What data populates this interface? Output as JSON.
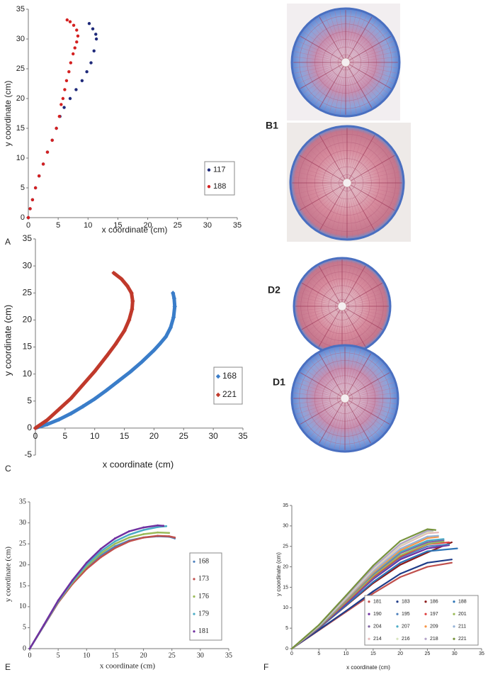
{
  "chart_data": [
    {
      "type": "scatter",
      "panel_label": "A",
      "x_label": "x coordinate (cm)",
      "y_label": "y coordinate (cm)",
      "marker": "circle",
      "mode": "markers",
      "xlim": [
        0,
        35
      ],
      "xticks": [
        0,
        5,
        10,
        15,
        20,
        25,
        30,
        35
      ],
      "ylim": [
        0,
        35
      ],
      "yticks": [
        0,
        5,
        10,
        15,
        20,
        25,
        30,
        35
      ],
      "series": [
        {
          "name": "117",
          "color": "#1f2a7a",
          "x": [
            0,
            0.3,
            0.7,
            1.2,
            1.8,
            2.5,
            3.2,
            4,
            4.7,
            5.3,
            6,
            7,
            8,
            9,
            9.8,
            10.5,
            11,
            11.4,
            11.3,
            10.8,
            10.2
          ],
          "values": [
            0,
            1.5,
            3,
            5,
            7,
            9,
            11,
            13,
            15,
            17,
            18.5,
            20,
            21.5,
            23,
            24.5,
            26,
            28,
            30,
            30.8,
            31.7,
            32.6
          ]
        },
        {
          "name": "188",
          "color": "#d42020",
          "x": [
            0,
            0.3,
            0.7,
            1.2,
            1.8,
            2.5,
            3.2,
            4,
            4.7,
            5.2,
            5.5,
            5.8,
            6.1,
            6.4,
            6.8,
            7.1,
            7.5,
            7.8,
            8.1,
            8.3,
            8.1,
            7.6,
            7,
            6.5
          ],
          "values": [
            0,
            1.5,
            3,
            5,
            7,
            9,
            11,
            13,
            15,
            17,
            19,
            20,
            21.5,
            23,
            24.5,
            26,
            27.5,
            28.5,
            29.5,
            30.5,
            31.5,
            32.3,
            32.9,
            33.2
          ]
        }
      ]
    },
    {
      "type": "scatter",
      "panel_label": "C",
      "x_label": "x coordinate  (cm)",
      "y_label": "y coordinate (cm)",
      "marker": "diamond",
      "mode": "markers+lines",
      "xlim": [
        0,
        35
      ],
      "xticks": [
        0,
        5,
        10,
        15,
        20,
        25,
        30,
        35
      ],
      "ylim": [
        -5,
        35
      ],
      "yticks": [
        -5,
        0,
        5,
        10,
        15,
        20,
        25,
        30,
        35
      ],
      "series": [
        {
          "name": "168",
          "color": "#3a7dc9",
          "x": [
            0,
            2,
            4,
            6,
            8,
            10,
            12,
            14,
            16,
            18,
            20,
            21,
            22,
            22.8,
            23.3,
            23.5,
            23.4,
            23.2
          ],
          "values": [
            0,
            0.7,
            1.6,
            2.7,
            4,
            5.4,
            7,
            8.7,
            10.4,
            12.3,
            14.4,
            15.6,
            16.9,
            18.6,
            20.5,
            22.5,
            24,
            25
          ]
        },
        {
          "name": "221",
          "color": "#c0392b",
          "x": [
            0,
            2,
            4,
            6,
            8,
            10,
            12,
            13.5,
            15,
            15.8,
            16.3,
            16.4,
            16.2,
            15.5,
            14.5,
            13.2
          ],
          "values": [
            0,
            1.5,
            3.5,
            5.5,
            8,
            10.5,
            13.3,
            15.5,
            18,
            20,
            22,
            23.5,
            25,
            26.3,
            27.6,
            28.7
          ]
        }
      ]
    },
    {
      "type": "scatter",
      "panel_label": "E",
      "x_label": "x coordinate (cm)",
      "y_label": "y coordinate (cm)",
      "marker": "circle",
      "mode": "markers+lines",
      "xlim": [
        0,
        35
      ],
      "xticks": [
        0,
        5,
        10,
        15,
        20,
        25,
        30,
        35
      ],
      "ylim": [
        0,
        35
      ],
      "yticks": [
        0,
        5,
        10,
        15,
        20,
        25,
        30,
        35
      ],
      "series": [
        {
          "name": "168",
          "color": "#4f81bd",
          "x": [
            0,
            2.5,
            5,
            7.5,
            10,
            12.5,
            15,
            17.5,
            20,
            22.5,
            24.5,
            25.5
          ],
          "values": [
            0,
            5.5,
            11,
            15.5,
            19.2,
            22.2,
            24.4,
            25.8,
            26.5,
            26.8,
            26.7,
            26.3
          ]
        },
        {
          "name": "173",
          "color": "#c0504d",
          "x": [
            0,
            2.5,
            5,
            7.5,
            10,
            12.5,
            15,
            17.5,
            20,
            22.5,
            24.5,
            25.5
          ],
          "values": [
            0,
            5.5,
            11,
            15.4,
            19,
            21.8,
            24,
            25.6,
            26.5,
            26.9,
            26.8,
            26.5
          ]
        },
        {
          "name": "176",
          "color": "#9bbb59",
          "x": [
            0,
            2.5,
            5,
            7.5,
            10,
            12.5,
            15,
            17.5,
            20,
            22.5,
            24.5
          ],
          "values": [
            0,
            5.6,
            11.2,
            15.8,
            19.6,
            22.7,
            25,
            26.5,
            27.3,
            27.7,
            27.6
          ]
        },
        {
          "name": "179",
          "color": "#4bacc6",
          "x": [
            0,
            2.5,
            5,
            7.5,
            10,
            12.5,
            15,
            17.5,
            20,
            22.5,
            24
          ],
          "values": [
            0,
            5.6,
            11.3,
            16,
            20,
            23.2,
            25.6,
            27.2,
            28.3,
            29,
            29.2
          ]
        },
        {
          "name": "181",
          "color": "#7030a0",
          "x": [
            0,
            2.5,
            5,
            7.5,
            10,
            12.5,
            15,
            17.5,
            20,
            22.5,
            23.5
          ],
          "values": [
            0,
            5.7,
            11.5,
            16.3,
            20.5,
            23.8,
            26.3,
            28,
            28.9,
            29.4,
            29.3
          ]
        }
      ]
    },
    {
      "type": "scatter",
      "panel_label": "F",
      "x_label": "x coordinate (cm)",
      "y_label": "y coordinate (cm)",
      "marker": "circle",
      "mode": "markers+lines",
      "xlim": [
        0,
        35
      ],
      "xticks": [
        0,
        5,
        10,
        15,
        20,
        25,
        30,
        35
      ],
      "ylim": [
        0,
        35
      ],
      "yticks": [
        0,
        5,
        10,
        15,
        20,
        25,
        30,
        35
      ],
      "series": [
        {
          "name": "181",
          "color": "#c0504d",
          "x": [
            0,
            5,
            10,
            15,
            20,
            25,
            29.5
          ],
          "values": [
            0,
            4.5,
            9,
            13.5,
            17.5,
            20,
            21
          ]
        },
        {
          "name": "183",
          "color": "#1f3c88",
          "x": [
            0,
            5,
            10,
            15,
            20,
            25,
            29.5
          ],
          "values": [
            0,
            4.6,
            9.2,
            14,
            18.3,
            21,
            21.8
          ]
        },
        {
          "name": "186",
          "color": "#8b1a1a",
          "x": [
            0,
            5,
            10,
            15,
            20,
            25,
            29.5
          ],
          "values": [
            0,
            5,
            10.5,
            16,
            20.5,
            23.5,
            26
          ]
        },
        {
          "name": "188",
          "color": "#2e75b6",
          "x": [
            0,
            5,
            10,
            15,
            20,
            25,
            30.5
          ],
          "values": [
            0,
            5,
            10.6,
            16.3,
            21,
            23.8,
            24.5
          ]
        },
        {
          "name": "190",
          "color": "#7030a0",
          "x": [
            0,
            5,
            10,
            15,
            20,
            25,
            29
          ],
          "values": [
            0,
            5.1,
            11,
            17,
            21.8,
            24.5,
            25.3
          ]
        },
        {
          "name": "195",
          "color": "#4f81bd",
          "x": [
            0,
            5,
            10,
            15,
            20,
            25,
            29
          ],
          "values": [
            0,
            5.2,
            11.2,
            17.3,
            22.2,
            25,
            25.5
          ]
        },
        {
          "name": "197",
          "color": "#e04040",
          "x": [
            0,
            5,
            10,
            15,
            20,
            25,
            29
          ],
          "values": [
            0,
            5.2,
            11.3,
            17.5,
            22.5,
            25.5,
            26
          ]
        },
        {
          "name": "201",
          "color": "#9bbb59",
          "x": [
            0,
            5,
            10,
            15,
            20,
            25,
            28
          ],
          "values": [
            0,
            5.3,
            11.5,
            17.8,
            22.8,
            25.6,
            26.2
          ]
        },
        {
          "name": "204",
          "color": "#8064a2",
          "x": [
            0,
            5,
            10,
            15,
            20,
            25,
            28
          ],
          "values": [
            0,
            5.4,
            11.8,
            18.2,
            23.3,
            26,
            26.5
          ]
        },
        {
          "name": "207",
          "color": "#4bacc6",
          "x": [
            0,
            5,
            10,
            15,
            20,
            25,
            28
          ],
          "values": [
            0,
            5.4,
            11.9,
            18.4,
            23.6,
            26.4,
            26.8
          ]
        },
        {
          "name": "209",
          "color": "#f79646",
          "x": [
            0,
            5,
            10,
            15,
            20,
            25,
            27
          ],
          "values": [
            0,
            5.5,
            12,
            18.6,
            24,
            27,
            27.3
          ]
        },
        {
          "name": "211",
          "color": "#95b3d7",
          "x": [
            0,
            5,
            10,
            15,
            20,
            25,
            27
          ],
          "values": [
            0,
            5.5,
            12.2,
            18.9,
            24.4,
            27.4,
            27.6
          ]
        },
        {
          "name": "214",
          "color": "#e6b9b8",
          "x": [
            0,
            5,
            10,
            15,
            20,
            25,
            27
          ],
          "values": [
            0,
            5.6,
            12.4,
            19.3,
            25,
            28.2,
            28.4
          ]
        },
        {
          "name": "216",
          "color": "#d7e4bd",
          "x": [
            0,
            5,
            10,
            15,
            20,
            25,
            26
          ],
          "values": [
            0,
            5.6,
            12.5,
            19.5,
            25.3,
            28.5,
            28.7
          ]
        },
        {
          "name": "218",
          "color": "#b3a2c7",
          "x": [
            0,
            5,
            10,
            15,
            20,
            25,
            26
          ],
          "values": [
            0,
            5.7,
            12.7,
            19.8,
            25.6,
            28.8,
            28.9
          ]
        },
        {
          "name": "221",
          "color": "#77933c",
          "x": [
            0,
            5,
            10,
            15,
            20,
            25,
            26.5
          ],
          "values": [
            0,
            5.8,
            13,
            20.3,
            26.3,
            29.2,
            29
          ]
        }
      ]
    }
  ],
  "images": [
    {
      "label": "B1"
    },
    {
      "label": "D2"
    },
    {
      "label": "D1"
    }
  ]
}
